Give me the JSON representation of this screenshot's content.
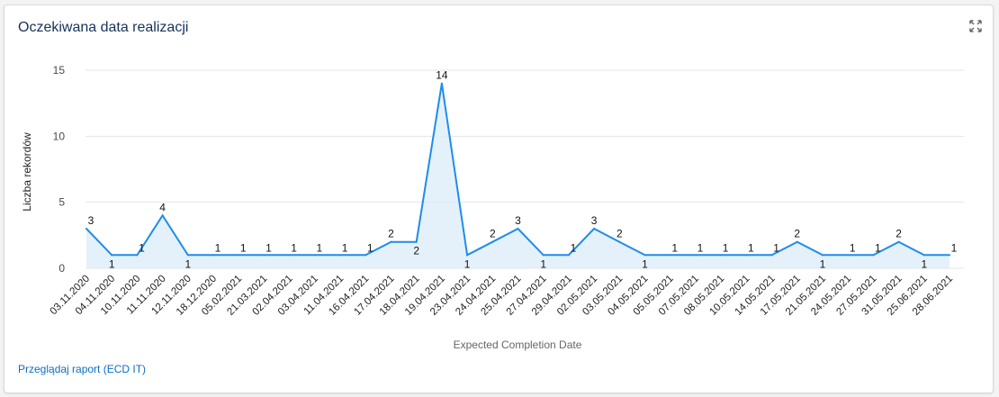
{
  "card": {
    "title": "Oczekiwana data realizacji",
    "expand_icon": "expand-arrows-icon",
    "report_link": "Przeglądaj raport (ECD IT)"
  },
  "colors": {
    "line": "#1f8ceb",
    "area": "#dbecf9",
    "grid": "#e5e5e5",
    "title": "#16325c",
    "link": "#0b6ec2"
  },
  "chart_data": {
    "type": "area",
    "title": "Oczekiwana data realizacji",
    "xlabel": "Expected Completion Date",
    "ylabel": "Liczba rekordów",
    "ylim": [
      0,
      15
    ],
    "yticks": [
      0,
      5,
      10,
      15
    ],
    "grid": true,
    "legend": "none",
    "categories": [
      "03.11.2020",
      "04.11.2020",
      "10.11.2020",
      "11.11.2020",
      "12.11.2020",
      "18.12.2020",
      "05.02.2021",
      "21.03.2021",
      "02.04.2021",
      "03.04.2021",
      "11.04.2021",
      "16.04.2021",
      "17.04.2021",
      "18.04.2021",
      "19.04.2021",
      "23.04.2021",
      "24.04.2021",
      "25.04.2021",
      "27.04.2021",
      "29.04.2021",
      "02.05.2021",
      "03.05.2021",
      "04.05.2021",
      "05.05.2021",
      "07.05.2021",
      "08.05.2021",
      "10.05.2021",
      "14.05.2021",
      "17.05.2021",
      "21.05.2021",
      "24.05.2021",
      "27.05.2021",
      "31.05.2021",
      "25.06.2021",
      "28.06.2021"
    ],
    "series": [
      {
        "values": [
          3,
          1,
          1,
          4,
          1,
          1,
          1,
          1,
          1,
          1,
          1,
          1,
          2,
          2,
          14,
          1,
          2,
          3,
          1,
          1,
          3,
          2,
          1,
          1,
          1,
          1,
          1,
          1,
          2,
          1,
          1,
          1,
          2,
          1,
          1
        ]
      }
    ]
  }
}
